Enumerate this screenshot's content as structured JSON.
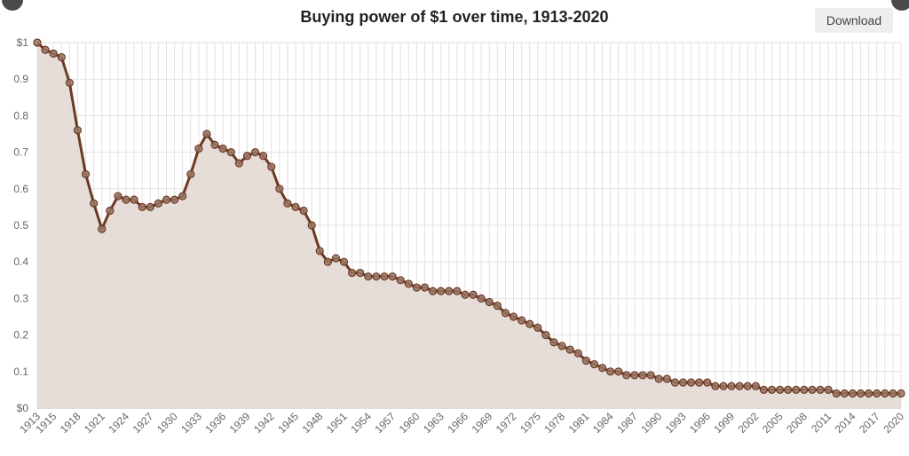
{
  "header": {
    "download_label": "Download"
  },
  "colors": {
    "line": "#6b3a22",
    "fill": "#e3d8d4",
    "marker_fill": "#9a7566",
    "grid": "#e3e3e3"
  },
  "chart_data": {
    "type": "area",
    "title": "Buying power of $1 over time, 1913-2020",
    "xlabel": "",
    "ylabel": "",
    "x": [
      1913,
      1914,
      1915,
      1916,
      1917,
      1918,
      1919,
      1920,
      1921,
      1922,
      1923,
      1924,
      1925,
      1926,
      1927,
      1928,
      1929,
      1930,
      1931,
      1932,
      1933,
      1934,
      1935,
      1936,
      1937,
      1938,
      1939,
      1940,
      1941,
      1942,
      1943,
      1944,
      1945,
      1946,
      1947,
      1948,
      1949,
      1950,
      1951,
      1952,
      1953,
      1954,
      1955,
      1956,
      1957,
      1958,
      1959,
      1960,
      1961,
      1962,
      1963,
      1964,
      1965,
      1966,
      1967,
      1968,
      1969,
      1970,
      1971,
      1972,
      1973,
      1974,
      1975,
      1976,
      1977,
      1978,
      1979,
      1980,
      1981,
      1982,
      1983,
      1984,
      1985,
      1986,
      1987,
      1988,
      1989,
      1990,
      1991,
      1992,
      1993,
      1994,
      1995,
      1996,
      1997,
      1998,
      1999,
      2000,
      2001,
      2002,
      2003,
      2004,
      2005,
      2006,
      2007,
      2008,
      2009,
      2010,
      2011,
      2012,
      2013,
      2014,
      2015,
      2016,
      2017,
      2018,
      2019,
      2020
    ],
    "series": [
      {
        "values": [
          1.0,
          0.98,
          0.97,
          0.96,
          0.89,
          0.76,
          0.64,
          0.56,
          0.49,
          0.54,
          0.58,
          0.57,
          0.57,
          0.55,
          0.55,
          0.56,
          0.57,
          0.57,
          0.58,
          0.64,
          0.71,
          0.75,
          0.72,
          0.71,
          0.7,
          0.67,
          0.69,
          0.7,
          0.69,
          0.66,
          0.6,
          0.56,
          0.55,
          0.54,
          0.5,
          0.43,
          0.4,
          0.41,
          0.4,
          0.37,
          0.37,
          0.36,
          0.36,
          0.36,
          0.36,
          0.35,
          0.34,
          0.33,
          0.33,
          0.32,
          0.32,
          0.32,
          0.32,
          0.31,
          0.31,
          0.3,
          0.29,
          0.28,
          0.26,
          0.25,
          0.24,
          0.23,
          0.22,
          0.2,
          0.18,
          0.17,
          0.16,
          0.15,
          0.13,
          0.12,
          0.11,
          0.1,
          0.1,
          0.09,
          0.09,
          0.09,
          0.09,
          0.08,
          0.08,
          0.07,
          0.07,
          0.07,
          0.07,
          0.07,
          0.06,
          0.06,
          0.06,
          0.06,
          0.06,
          0.06,
          0.05,
          0.05,
          0.05,
          0.05,
          0.05,
          0.05,
          0.05,
          0.05,
          0.05,
          0.04,
          0.04,
          0.04,
          0.04,
          0.04,
          0.04,
          0.04,
          0.04,
          0.04
        ]
      }
    ],
    "ylim": [
      0,
      1
    ],
    "y_ticks": [
      "$0",
      "0.1",
      "0.2",
      "0.3",
      "0.4",
      "0.5",
      "0.6",
      "0.7",
      "0.8",
      "0.9",
      "$1"
    ],
    "x_tick_labels": [
      "1913",
      "1915",
      "1918",
      "1921",
      "1924",
      "1927",
      "1930",
      "1933",
      "1936",
      "1939",
      "1942",
      "1945",
      "1948",
      "1951",
      "1954",
      "1957",
      "1960",
      "1963",
      "1966",
      "1969",
      "1972",
      "1975",
      "1978",
      "1981",
      "1984",
      "1987",
      "1990",
      "1993",
      "1996",
      "1999",
      "2002",
      "2005",
      "2008",
      "2011",
      "2014",
      "2017",
      "2020"
    ],
    "grid": true,
    "legend": "none"
  }
}
